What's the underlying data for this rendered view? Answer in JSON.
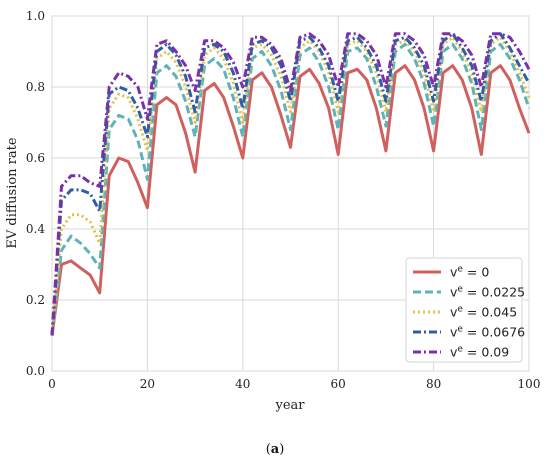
{
  "caption": {
    "open": "(",
    "letter": "a",
    "close": ")"
  },
  "chart_data": {
    "type": "line",
    "title": "",
    "xlabel": "year",
    "ylabel": "EV diffusion rate",
    "xlim": [
      0,
      100
    ],
    "ylim": [
      0.0,
      1.0
    ],
    "xticks": [
      0,
      20,
      40,
      60,
      80,
      100
    ],
    "xtick_labels": [
      "0",
      "20",
      "40",
      "60",
      "80",
      "100"
    ],
    "yticks": [
      0.0,
      0.2,
      0.4,
      0.6,
      0.8,
      1.0
    ],
    "ytick_labels": [
      "0.0",
      "0.2",
      "0.4",
      "0.6",
      "0.8",
      "1.0"
    ],
    "grid": true,
    "legend_position": "bottom-right",
    "series": [
      {
        "name_base": "v",
        "name_sup": "e",
        "name_rest": " = 0",
        "color": "#d0605e",
        "dash": "solid",
        "x": [
          0,
          2,
          4,
          6,
          8,
          10,
          12,
          14,
          16,
          18,
          20,
          22,
          24,
          26,
          28,
          30,
          32,
          34,
          36,
          38,
          40,
          42,
          44,
          46,
          48,
          50,
          52,
          54,
          56,
          58,
          60,
          62,
          64,
          66,
          68,
          70,
          72,
          74,
          76,
          78,
          80,
          82,
          84,
          86,
          88,
          90,
          92,
          94,
          96,
          98,
          100
        ],
        "y": [
          0.1,
          0.3,
          0.31,
          0.29,
          0.27,
          0.22,
          0.55,
          0.6,
          0.59,
          0.53,
          0.46,
          0.75,
          0.77,
          0.75,
          0.67,
          0.56,
          0.79,
          0.81,
          0.77,
          0.69,
          0.6,
          0.82,
          0.84,
          0.8,
          0.72,
          0.63,
          0.83,
          0.85,
          0.81,
          0.74,
          0.61,
          0.84,
          0.85,
          0.82,
          0.74,
          0.62,
          0.84,
          0.86,
          0.82,
          0.74,
          0.62,
          0.84,
          0.86,
          0.82,
          0.74,
          0.61,
          0.84,
          0.86,
          0.82,
          0.74,
          0.67
        ]
      },
      {
        "name_base": "v",
        "name_sup": "e",
        "name_rest": " = 0.0225",
        "color": "#5fb3b8",
        "dash": "dashed",
        "x": [
          0,
          2,
          4,
          6,
          8,
          10,
          12,
          14,
          16,
          18,
          20,
          22,
          24,
          26,
          28,
          30,
          32,
          34,
          36,
          38,
          40,
          42,
          44,
          46,
          48,
          50,
          52,
          54,
          56,
          58,
          60,
          62,
          64,
          66,
          68,
          70,
          72,
          74,
          76,
          78,
          80,
          82,
          84,
          86,
          88,
          90,
          92,
          94,
          96,
          98,
          100
        ],
        "y": [
          0.1,
          0.34,
          0.38,
          0.36,
          0.33,
          0.29,
          0.68,
          0.72,
          0.71,
          0.65,
          0.54,
          0.84,
          0.86,
          0.83,
          0.76,
          0.66,
          0.86,
          0.88,
          0.85,
          0.77,
          0.66,
          0.88,
          0.9,
          0.86,
          0.79,
          0.68,
          0.89,
          0.91,
          0.87,
          0.8,
          0.68,
          0.9,
          0.91,
          0.88,
          0.8,
          0.69,
          0.9,
          0.92,
          0.88,
          0.81,
          0.69,
          0.9,
          0.92,
          0.88,
          0.81,
          0.68,
          0.9,
          0.92,
          0.88,
          0.82,
          0.74
        ]
      },
      {
        "name_base": "v",
        "name_sup": "e",
        "name_rest": " = 0.045",
        "color": "#e5c14a",
        "dash": "dotted",
        "x": [
          0,
          2,
          4,
          6,
          8,
          10,
          12,
          14,
          16,
          18,
          20,
          22,
          24,
          26,
          28,
          30,
          32,
          34,
          36,
          38,
          40,
          42,
          44,
          46,
          48,
          50,
          52,
          54,
          56,
          58,
          60,
          62,
          64,
          66,
          68,
          70,
          72,
          74,
          76,
          78,
          80,
          82,
          84,
          86,
          88,
          90,
          92,
          94,
          96,
          98,
          100
        ],
        "y": [
          0.1,
          0.4,
          0.44,
          0.44,
          0.42,
          0.36,
          0.74,
          0.78,
          0.77,
          0.71,
          0.62,
          0.88,
          0.9,
          0.87,
          0.8,
          0.7,
          0.89,
          0.91,
          0.88,
          0.81,
          0.7,
          0.91,
          0.92,
          0.89,
          0.83,
          0.73,
          0.91,
          0.93,
          0.9,
          0.84,
          0.73,
          0.92,
          0.93,
          0.9,
          0.84,
          0.73,
          0.92,
          0.93,
          0.9,
          0.84,
          0.73,
          0.92,
          0.94,
          0.9,
          0.84,
          0.73,
          0.92,
          0.94,
          0.9,
          0.84,
          0.77
        ]
      },
      {
        "name_base": "v",
        "name_sup": "e",
        "name_rest": " = 0.0676",
        "color": "#2f5ea6",
        "dash": "dashdot",
        "x": [
          0,
          2,
          4,
          6,
          8,
          10,
          12,
          14,
          16,
          18,
          20,
          22,
          24,
          26,
          28,
          30,
          32,
          34,
          36,
          38,
          40,
          42,
          44,
          46,
          48,
          50,
          52,
          54,
          56,
          58,
          60,
          62,
          64,
          66,
          68,
          70,
          72,
          74,
          76,
          78,
          80,
          82,
          84,
          86,
          88,
          90,
          92,
          94,
          96,
          98,
          100
        ],
        "y": [
          0.1,
          0.48,
          0.51,
          0.51,
          0.5,
          0.45,
          0.78,
          0.8,
          0.79,
          0.74,
          0.66,
          0.9,
          0.92,
          0.89,
          0.83,
          0.73,
          0.91,
          0.92,
          0.9,
          0.84,
          0.74,
          0.92,
          0.93,
          0.91,
          0.86,
          0.76,
          0.93,
          0.94,
          0.91,
          0.86,
          0.76,
          0.93,
          0.94,
          0.91,
          0.86,
          0.76,
          0.93,
          0.94,
          0.91,
          0.86,
          0.76,
          0.93,
          0.95,
          0.91,
          0.86,
          0.76,
          0.93,
          0.95,
          0.91,
          0.86,
          0.81
        ]
      },
      {
        "name_base": "v",
        "name_sup": "e",
        "name_rest": " = 0.09",
        "color": "#7b2fa8",
        "dash": "dashdot",
        "x": [
          0,
          2,
          4,
          6,
          8,
          10,
          12,
          14,
          16,
          18,
          20,
          22,
          24,
          26,
          28,
          30,
          32,
          34,
          36,
          38,
          40,
          42,
          44,
          46,
          48,
          50,
          52,
          54,
          56,
          58,
          60,
          62,
          64,
          66,
          68,
          70,
          72,
          74,
          76,
          78,
          80,
          82,
          84,
          86,
          88,
          90,
          92,
          94,
          96,
          98,
          100
        ],
        "y": [
          0.1,
          0.52,
          0.55,
          0.55,
          0.53,
          0.52,
          0.8,
          0.84,
          0.83,
          0.8,
          0.71,
          0.92,
          0.93,
          0.9,
          0.86,
          0.79,
          0.93,
          0.93,
          0.91,
          0.87,
          0.8,
          0.94,
          0.94,
          0.92,
          0.88,
          0.79,
          0.94,
          0.95,
          0.93,
          0.89,
          0.8,
          0.95,
          0.95,
          0.93,
          0.89,
          0.8,
          0.95,
          0.95,
          0.93,
          0.89,
          0.8,
          0.95,
          0.95,
          0.93,
          0.89,
          0.8,
          0.95,
          0.95,
          0.94,
          0.9,
          0.85
        ]
      }
    ]
  }
}
